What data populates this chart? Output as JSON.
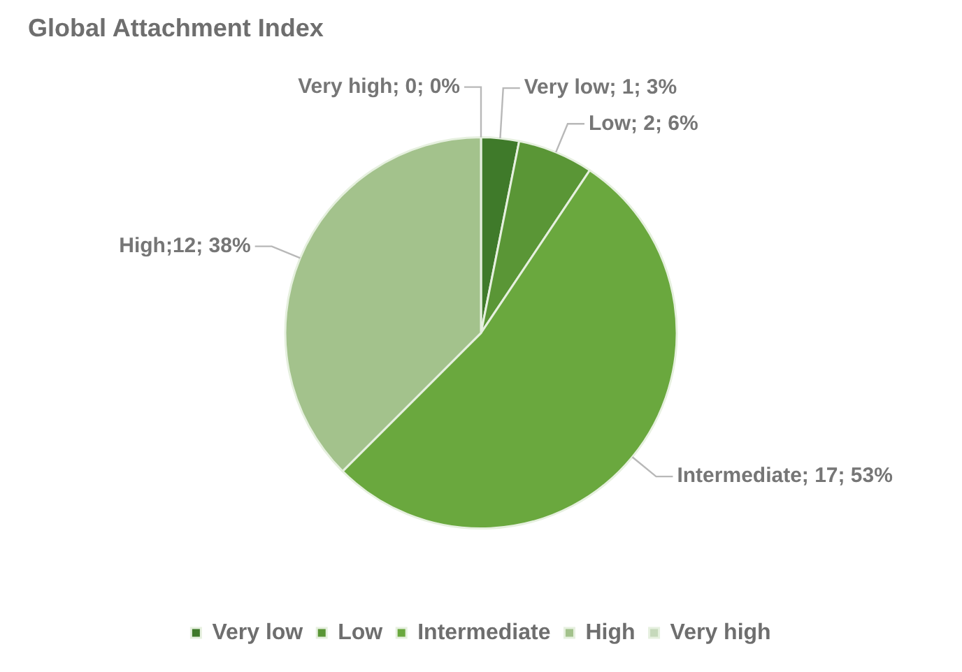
{
  "chart_data": {
    "type": "pie",
    "title": "Global Attachment Index",
    "categories": [
      "Very low",
      "Low",
      "Intermediate",
      "High",
      "Very high"
    ],
    "values": [
      1,
      2,
      17,
      12,
      0
    ],
    "colors": [
      "#3f7a2a",
      "#5a9636",
      "#6aa83e",
      "#a3c28c",
      "#c6d9bb"
    ],
    "value_labels": [
      "Very low; 1; 3%",
      "Low; 2; 6%",
      "Intermediate; 17; 53%",
      "High;12; 38%",
      "Very high; 0; 0%"
    ],
    "legend": "bottom"
  }
}
